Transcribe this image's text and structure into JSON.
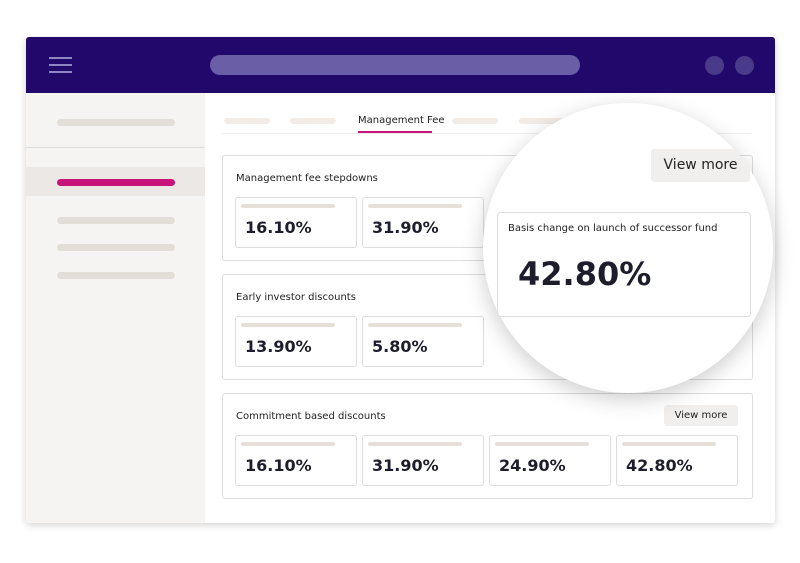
{
  "tabs": {
    "active": "Management Fee"
  },
  "sections": [
    {
      "title": "Management fee stepdowns",
      "values": [
        "16.10%",
        "31.90%"
      ]
    },
    {
      "title": "Early investor discounts",
      "values": [
        "13.90%",
        "5.80%"
      ]
    },
    {
      "title": "Commitment based discounts",
      "button": "View more",
      "values": [
        "16.10%",
        "31.90%",
        "24.90%",
        "42.80%"
      ]
    }
  ],
  "magnifier": {
    "button": "View more",
    "card": {
      "label": "Basis change on launch of successor fund",
      "value": "42.80%"
    }
  }
}
